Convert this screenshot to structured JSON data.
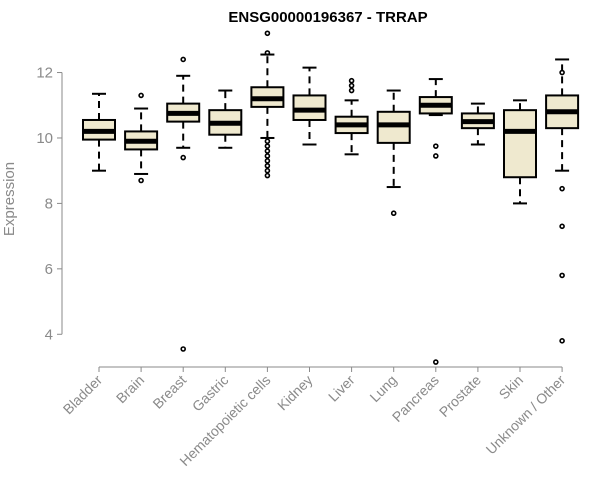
{
  "chart_data": {
    "type": "boxplot",
    "title": "ENSG00000196367 - TRRAP",
    "xlabel": "",
    "ylabel": "Expression",
    "ylim": [
      3,
      13.3
    ],
    "yticks": [
      4,
      6,
      8,
      10,
      12
    ],
    "grid": false,
    "categories": [
      "Bladder",
      "Brain",
      "Breast",
      "Gastric",
      "Hematopoietic cells",
      "Kidney",
      "Liver",
      "Lung",
      "Pancreas",
      "Prostate",
      "Skin",
      "Unknown / Other"
    ],
    "colors": {
      "box_fill": "#efe9cf",
      "box_stroke": "#000000",
      "axis": "#8a8a8a"
    },
    "boxes": [
      {
        "whisker_low": 9.0,
        "q1": 9.95,
        "median": 10.2,
        "q3": 10.55,
        "whisker_high": 11.35,
        "outliers": []
      },
      {
        "whisker_low": 8.9,
        "q1": 9.65,
        "median": 9.9,
        "q3": 10.2,
        "whisker_high": 10.9,
        "outliers": [
          8.7,
          11.3
        ]
      },
      {
        "whisker_low": 9.7,
        "q1": 10.5,
        "median": 10.75,
        "q3": 11.05,
        "whisker_high": 11.9,
        "outliers": [
          12.4,
          9.4,
          3.55
        ]
      },
      {
        "whisker_low": 9.7,
        "q1": 10.1,
        "median": 10.45,
        "q3": 10.85,
        "whisker_high": 11.45,
        "outliers": []
      },
      {
        "whisker_low": 10.0,
        "q1": 10.95,
        "median": 11.2,
        "q3": 11.55,
        "whisker_high": 12.55,
        "outliers": [
          13.2,
          12.6,
          9.9,
          9.75,
          9.6,
          9.45,
          9.3,
          9.15,
          9.0,
          8.85
        ]
      },
      {
        "whisker_low": 9.8,
        "q1": 10.55,
        "median": 10.85,
        "q3": 11.3,
        "whisker_high": 12.15,
        "outliers": []
      },
      {
        "whisker_low": 9.5,
        "q1": 10.15,
        "median": 10.4,
        "q3": 10.65,
        "whisker_high": 11.15,
        "outliers": [
          11.75,
          11.6,
          11.45
        ]
      },
      {
        "whisker_low": 8.5,
        "q1": 9.85,
        "median": 10.4,
        "q3": 10.8,
        "whisker_high": 11.45,
        "outliers": [
          7.7
        ]
      },
      {
        "whisker_low": 10.7,
        "q1": 10.75,
        "median": 11.0,
        "q3": 11.25,
        "whisker_high": 11.8,
        "outliers": [
          9.75,
          9.45,
          3.15
        ]
      },
      {
        "whisker_low": 9.8,
        "q1": 10.3,
        "median": 10.5,
        "q3": 10.75,
        "whisker_high": 11.05,
        "outliers": []
      },
      {
        "whisker_low": 8.0,
        "q1": 8.8,
        "median": 10.2,
        "q3": 10.85,
        "whisker_high": 11.15,
        "outliers": []
      },
      {
        "whisker_low": 9.0,
        "q1": 10.3,
        "median": 10.8,
        "q3": 11.3,
        "whisker_high": 12.4,
        "outliers": [
          12.0,
          8.45,
          7.3,
          5.8,
          3.8
        ]
      }
    ]
  }
}
